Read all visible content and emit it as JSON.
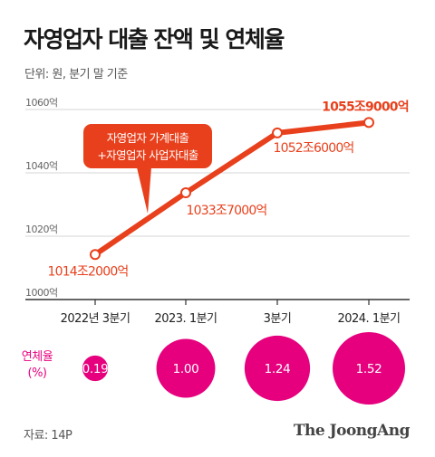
{
  "title": "자영업자 대출 잔액 및 연체율",
  "unit_note": "단위: 원, 분기 말 기준",
  "source": "자료: 14P",
  "brand": "The JoongAng",
  "colors": {
    "line": "#e8401c",
    "bubble": "#e6007e",
    "text_dark": "#1a1a1a",
    "grid": "#d5d5d5"
  },
  "chart_data": [
    {
      "type": "line",
      "categories": [
        "2022년 3분기",
        "2023. 1분기",
        "3분기",
        "2024. 1분기"
      ],
      "series": [
        {
          "values": [
            1014.2,
            1033.7,
            1052.6,
            1055.9
          ],
          "labels": [
            "1014조2000억",
            "1033조7000억",
            "1052조6000억",
            "1055조9000억"
          ]
        }
      ],
      "yticks": [
        "1000억",
        "1020억",
        "1040억",
        "1060억"
      ],
      "ytick_values": [
        1000,
        1020,
        1040,
        1060
      ],
      "ylim": [
        1000,
        1060
      ],
      "grid": true,
      "annotation": [
        "자영업자 가계대출",
        "+자영업자 사업자대출"
      ]
    },
    {
      "type": "bubble",
      "title": [
        "연체율",
        "(%)"
      ],
      "categories": [
        "2022년 3분기",
        "2023. 1분기",
        "3분기",
        "2024. 1분기"
      ],
      "values": [
        0.19,
        1.0,
        1.24,
        1.52
      ],
      "labels": [
        "0.19",
        "1.00",
        "1.24",
        "1.52"
      ]
    }
  ]
}
